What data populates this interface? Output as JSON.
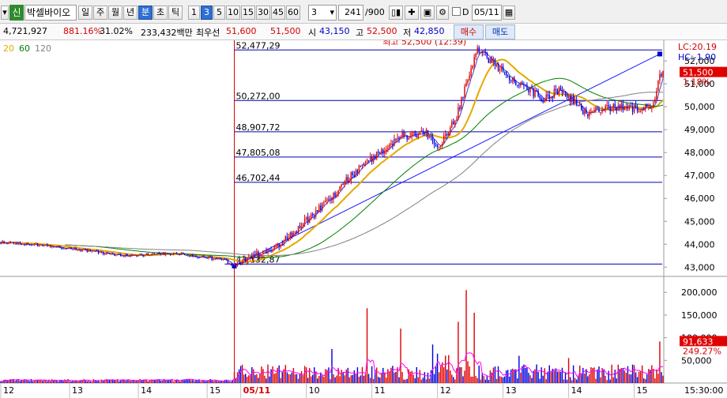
{
  "toolbar": {
    "badge": "신",
    "stock_name": "박셀바이오",
    "periods": [
      "일",
      "주",
      "월",
      "년",
      "분",
      "초",
      "틱"
    ],
    "active_period": "분",
    "intervals": [
      "1",
      "3",
      "5",
      "10",
      "15",
      "30",
      "45",
      "60"
    ],
    "active_interval": "3",
    "interval_value": "3",
    "count": "241",
    "count_total": "/900",
    "check_label": "D",
    "date_value": "05/11"
  },
  "infobar": {
    "volume": "4,721,927",
    "ratio": "881.16%",
    "turnover": "31.02%",
    "amount": "233,432백만",
    "best_ask_label": "최우선",
    "best_ask": "51,600",
    "best_bid": "51,500",
    "open_label": "시",
    "open": "43,150",
    "high_label": "고",
    "high": "52,500",
    "low_label": "저",
    "low": "42,850",
    "buy_label": "매수",
    "sell_label": "매도"
  },
  "chart_data": {
    "type": "candlestick",
    "ma_legend": [
      {
        "label": "20",
        "color": "#e6a800"
      },
      {
        "label": "60",
        "color": "#008000"
      },
      {
        "label": "120",
        "color": "#808080"
      }
    ],
    "price_axis": {
      "min": 42700,
      "max": 52900,
      "ticks": [
        "52,000",
        "51,000",
        "50,000",
        "49,000",
        "48,000",
        "47,000",
        "46,000",
        "45,000",
        "44,000",
        "43,000"
      ]
    },
    "volume_axis": {
      "min": 0,
      "max": 230000,
      "ticks": [
        "200,000",
        "150,000",
        "100,000",
        "50,000"
      ]
    },
    "x_labels": [
      "12",
      "13",
      "14",
      "15",
      "05/11",
      "10",
      "11",
      "12",
      "13",
      "14",
      "15"
    ],
    "x_label_slots": [
      0,
      43,
      86,
      129,
      150,
      191,
      232,
      273,
      314,
      355,
      396
    ],
    "date_divider_slot": 146,
    "fib_levels": [
      {
        "label": "52,477,29",
        "value": 52477
      },
      {
        "label": "50,272,00",
        "value": 50272
      },
      {
        "label": "48,907,72",
        "value": 48908
      },
      {
        "label": "47,805,08",
        "value": 47805
      },
      {
        "label": "46,702,44",
        "value": 46702
      },
      {
        "label": "43,132,87",
        "value": 43133
      }
    ],
    "high_annotation": "최고 52,500 (12:39)",
    "lc_label": "LC:20.19",
    "hc_label": "HC:-1.90",
    "last_price": "51,500",
    "last_change": "1.18%",
    "last_volume": "91,633",
    "last_volume_ratio": "249.27%",
    "time_label": "15:30:00",
    "key_points": {
      "day1_open_slot": 0,
      "day1_level": 44100,
      "day2_low_slot": 146,
      "day2_low": 43050,
      "peak_slot": 298,
      "peak": 52500,
      "end_slot": 412,
      "end": 51500
    },
    "volume_peaks": [
      {
        "slot": 207,
        "value": 75000
      },
      {
        "slot": 229,
        "value": 165000
      },
      {
        "slot": 250,
        "value": 120000
      },
      {
        "slot": 270,
        "value": 85000
      },
      {
        "slot": 286,
        "value": 135000
      },
      {
        "slot": 291,
        "value": 205000
      },
      {
        "slot": 296,
        "value": 155000
      },
      {
        "slot": 324,
        "value": 60000
      },
      {
        "slot": 355,
        "value": 55000
      },
      {
        "slot": 412,
        "value": 91633
      }
    ]
  }
}
